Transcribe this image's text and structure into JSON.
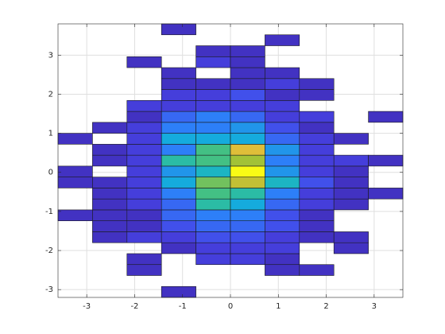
{
  "chart_data": {
    "type": "histogram2",
    "xbins": [
      -3.6,
      -2.88,
      -2.16,
      -1.44,
      -0.72,
      0,
      0.72,
      1.44,
      2.16,
      2.88,
      3.6
    ],
    "ybins": [
      -3.2,
      -2.92,
      -2.64,
      -2.36,
      -2.08,
      -1.8,
      -1.52,
      -1.24,
      -0.96,
      -0.68,
      -0.4,
      -0.12,
      0.16,
      0.44,
      0.72,
      1.0,
      1.28,
      1.56,
      1.84,
      2.12,
      2.4,
      2.68,
      2.96,
      3.24,
      3.52,
      3.8
    ],
    "counts": [
      [
        0,
        0,
        0,
        1,
        0,
        0,
        0,
        0,
        0,
        0
      ],
      [
        0,
        0,
        0,
        0,
        0,
        0,
        0,
        0,
        0,
        0
      ],
      [
        0,
        0,
        1,
        0,
        0,
        0,
        1,
        1,
        0,
        0
      ],
      [
        0,
        0,
        1,
        0,
        2,
        2,
        1,
        0,
        0,
        0
      ],
      [
        0,
        0,
        0,
        1,
        2,
        2,
        2,
        0,
        1,
        0
      ],
      [
        0,
        1,
        2,
        2,
        3,
        3,
        2,
        1,
        1,
        0
      ],
      [
        0,
        1,
        1,
        3,
        4,
        4,
        3,
        1,
        0,
        0
      ],
      [
        1,
        1,
        1,
        4,
        5,
        5,
        3,
        1,
        0,
        0
      ],
      [
        0,
        1,
        2,
        4,
        9,
        7,
        4,
        2,
        1,
        0
      ],
      [
        0,
        1,
        2,
        5,
        10,
        9,
        5,
        2,
        1,
        1
      ],
      [
        1,
        1,
        2,
        7,
        11,
        13,
        8,
        3,
        1,
        0
      ],
      [
        1,
        0,
        2,
        6,
        8,
        17,
        6,
        2,
        1,
        0
      ],
      [
        0,
        1,
        2,
        9,
        10,
        12,
        5,
        2,
        2,
        1
      ],
      [
        0,
        1,
        2,
        5,
        10,
        14,
        6,
        2,
        0,
        0
      ],
      [
        1,
        0,
        2,
        7,
        7,
        7,
        4,
        2,
        1,
        0
      ],
      [
        0,
        1,
        2,
        5,
        5,
        6,
        3,
        1,
        0,
        0
      ],
      [
        0,
        0,
        1,
        4,
        5,
        4,
        2,
        2,
        0,
        1
      ],
      [
        0,
        0,
        2,
        2,
        2,
        2,
        2,
        0,
        0,
        0
      ],
      [
        0,
        0,
        0,
        2,
        2,
        3,
        1,
        1,
        0,
        0
      ],
      [
        0,
        0,
        0,
        1,
        1,
        1,
        2,
        1,
        0,
        0
      ],
      [
        0,
        0,
        0,
        1,
        0,
        1,
        1,
        0,
        0,
        0
      ],
      [
        0,
        0,
        1,
        0,
        2,
        1,
        0,
        0,
        0,
        0
      ],
      [
        0,
        0,
        0,
        0,
        1,
        1,
        0,
        0,
        0,
        0
      ],
      [
        0,
        0,
        0,
        0,
        0,
        0,
        1,
        0,
        0,
        0
      ],
      [
        0,
        0,
        0,
        1,
        0,
        0,
        0,
        0,
        0,
        0
      ]
    ],
    "colormap": [
      "#3e26a8",
      "#4743e6",
      "#2f7cfa",
      "#12b1d9",
      "#35c08f",
      "#a9c232",
      "#f0bd3b",
      "#f9fb15"
    ],
    "xlim": [
      -3.6,
      3.6
    ],
    "ylim": [
      -3.2,
      3.8
    ],
    "xticks": [
      -3,
      -2,
      -1,
      0,
      1,
      2,
      3
    ],
    "yticks": [
      -3,
      -2,
      -1,
      0,
      1,
      2,
      3
    ],
    "grid": true
  }
}
